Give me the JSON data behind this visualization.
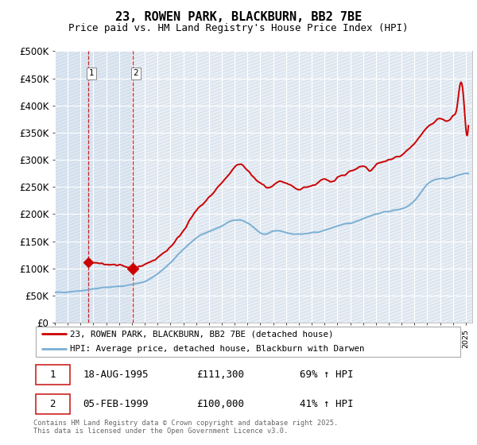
{
  "title": "23, ROWEN PARK, BLACKBURN, BB2 7BE",
  "subtitle": "Price paid vs. HM Land Registry's House Price Index (HPI)",
  "ylabel_ticks": [
    "£0",
    "£50K",
    "£100K",
    "£150K",
    "£200K",
    "£250K",
    "£300K",
    "£350K",
    "£400K",
    "£450K",
    "£500K"
  ],
  "ytick_values": [
    0,
    50000,
    100000,
    150000,
    200000,
    250000,
    300000,
    350000,
    400000,
    450000,
    500000
  ],
  "ylim": [
    0,
    500000
  ],
  "xlim_start": 1993.0,
  "xlim_end": 2025.5,
  "background_color": "#ffffff",
  "plot_bg_color": "#e8eef5",
  "grid_color": "#ffffff",
  "hpi_color": "#7aafd4",
  "price_color": "#cc0000",
  "transaction1_x": 1995.625,
  "transaction1_y": 111300,
  "transaction2_x": 1999.09,
  "transaction2_y": 100000,
  "legend_line1": "23, ROWEN PARK, BLACKBURN, BB2 7BE (detached house)",
  "legend_line2": "HPI: Average price, detached house, Blackburn with Darwen",
  "table_row1": [
    "1",
    "18-AUG-1995",
    "£111,300",
    "69% ↑ HPI"
  ],
  "table_row2": [
    "2",
    "05-FEB-1999",
    "£100,000",
    "41% ↑ HPI"
  ],
  "footnote": "Contains HM Land Registry data © Crown copyright and database right 2025.\nThis data is licensed under the Open Government Licence v3.0.",
  "title_fontsize": 11,
  "subtitle_fontsize": 9
}
